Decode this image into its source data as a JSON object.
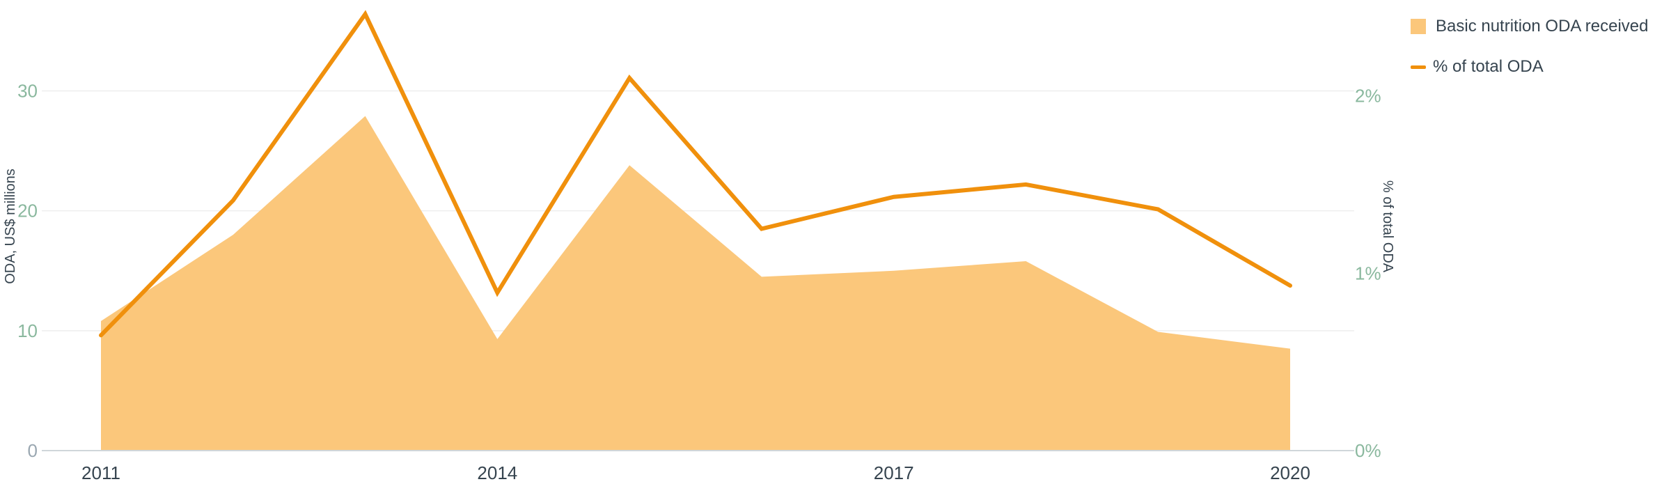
{
  "chart_data": {
    "type": "area",
    "x": [
      "2011",
      "2012",
      "2013",
      "2014",
      "2015",
      "2016",
      "2017",
      "2018",
      "2019",
      "2020"
    ],
    "x_tick_labels": [
      "2011",
      "2014",
      "2017",
      "2020"
    ],
    "series": [
      {
        "name": "Basic nutrition ODA received",
        "type": "area",
        "axis": "left",
        "values": [
          10.8,
          18.0,
          27.9,
          9.3,
          23.8,
          14.5,
          15.0,
          15.8,
          9.9,
          8.5
        ]
      },
      {
        "name": "% of total ODA",
        "type": "line",
        "axis": "right",
        "values": [
          0.65,
          1.41,
          2.46,
          0.89,
          2.1,
          1.25,
          1.43,
          1.5,
          1.36,
          0.93
        ]
      }
    ],
    "ylabel_left": "ODA, US$ millions",
    "ylabel_right": "% of total ODA",
    "ylim_left": [
      0,
      35
    ],
    "ylim_right": [
      0,
      2.5
    ],
    "yticks_left": [
      "0",
      "10",
      "20",
      "30"
    ],
    "yticks_right": [
      "0%",
      "1%",
      "2%"
    ],
    "grid": true,
    "legend_position": "top-right",
    "colors": {
      "area": "#fbc77b",
      "line": "#f0900c",
      "left_tick": "#8ab89e",
      "right_tick": "#8ab89e",
      "grid": "#eeeeee",
      "axis": "#cfd6da",
      "text": "#36444f"
    }
  }
}
